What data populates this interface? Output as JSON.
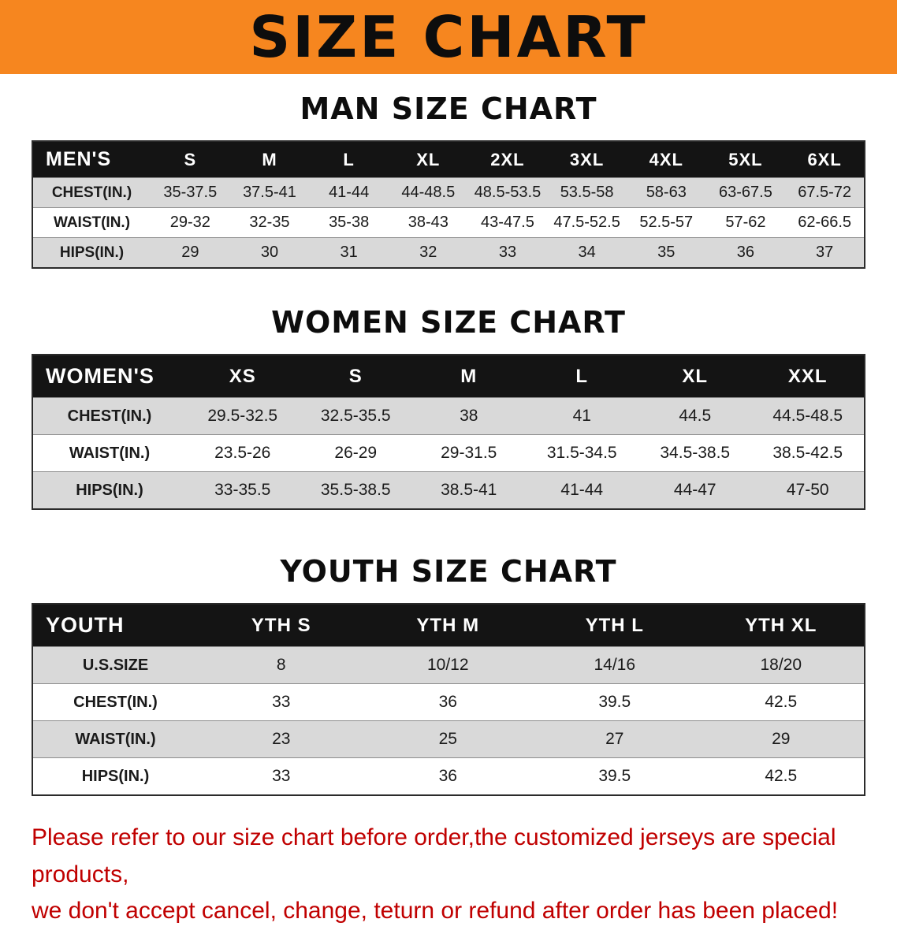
{
  "banner": {
    "title": "SIZE CHART",
    "bg_color": "#F6861F"
  },
  "sections": {
    "men": {
      "heading": "MAN SIZE CHART"
    },
    "women": {
      "heading": "WOMEN SIZE CHART"
    },
    "youth": {
      "heading": "YOUTH SIZE CHART"
    }
  },
  "men_table": {
    "header": [
      "MEN'S",
      "S",
      "M",
      "L",
      "XL",
      "2XL",
      "3XL",
      "4XL",
      "5XL",
      "6XL"
    ],
    "rows": [
      {
        "label": "CHEST(IN.)",
        "values": [
          "35-37.5",
          "37.5-41",
          "41-44",
          "44-48.5",
          "48.5-53.5",
          "53.5-58",
          "58-63",
          "63-67.5",
          "67.5-72"
        ]
      },
      {
        "label": "WAIST(IN.)",
        "values": [
          "29-32",
          "32-35",
          "35-38",
          "38-43",
          "43-47.5",
          "47.5-52.5",
          "52.5-57",
          "57-62",
          "62-66.5"
        ]
      },
      {
        "label": "HIPS(IN.)",
        "values": [
          "29",
          "30",
          "31",
          "32",
          "33",
          "34",
          "35",
          "36",
          "37"
        ]
      }
    ]
  },
  "women_table": {
    "header": [
      "WOMEN'S",
      "XS",
      "S",
      "M",
      "L",
      "XL",
      "XXL"
    ],
    "rows": [
      {
        "label": "CHEST(IN.)",
        "values": [
          "29.5-32.5",
          "32.5-35.5",
          "38",
          "41",
          "44.5",
          "44.5-48.5"
        ]
      },
      {
        "label": "WAIST(IN.)",
        "values": [
          "23.5-26",
          "26-29",
          "29-31.5",
          "31.5-34.5",
          "34.5-38.5",
          "38.5-42.5"
        ]
      },
      {
        "label": "HIPS(IN.)",
        "values": [
          "33-35.5",
          "35.5-38.5",
          "38.5-41",
          "41-44",
          "44-47",
          "47-50"
        ]
      }
    ]
  },
  "youth_table": {
    "header": [
      "YOUTH",
      "YTH S",
      "YTH M",
      "YTH L",
      "YTH XL"
    ],
    "rows": [
      {
        "label": "U.S.SIZE",
        "values": [
          "8",
          "10/12",
          "14/16",
          "18/20"
        ]
      },
      {
        "label": "CHEST(IN.)",
        "values": [
          "33",
          "36",
          "39.5",
          "42.5"
        ]
      },
      {
        "label": "WAIST(IN.)",
        "values": [
          "23",
          "25",
          "27",
          "29"
        ]
      },
      {
        "label": "HIPS(IN.)",
        "values": [
          "33",
          "36",
          "39.5",
          "42.5"
        ]
      }
    ]
  },
  "footer": {
    "line1": "Please refer to our size chart before order,the customized jerseys are special products,",
    "line2": "we don't accept cancel, change, teturn or refund after order has been placed!",
    "text_color": "#C00000"
  }
}
